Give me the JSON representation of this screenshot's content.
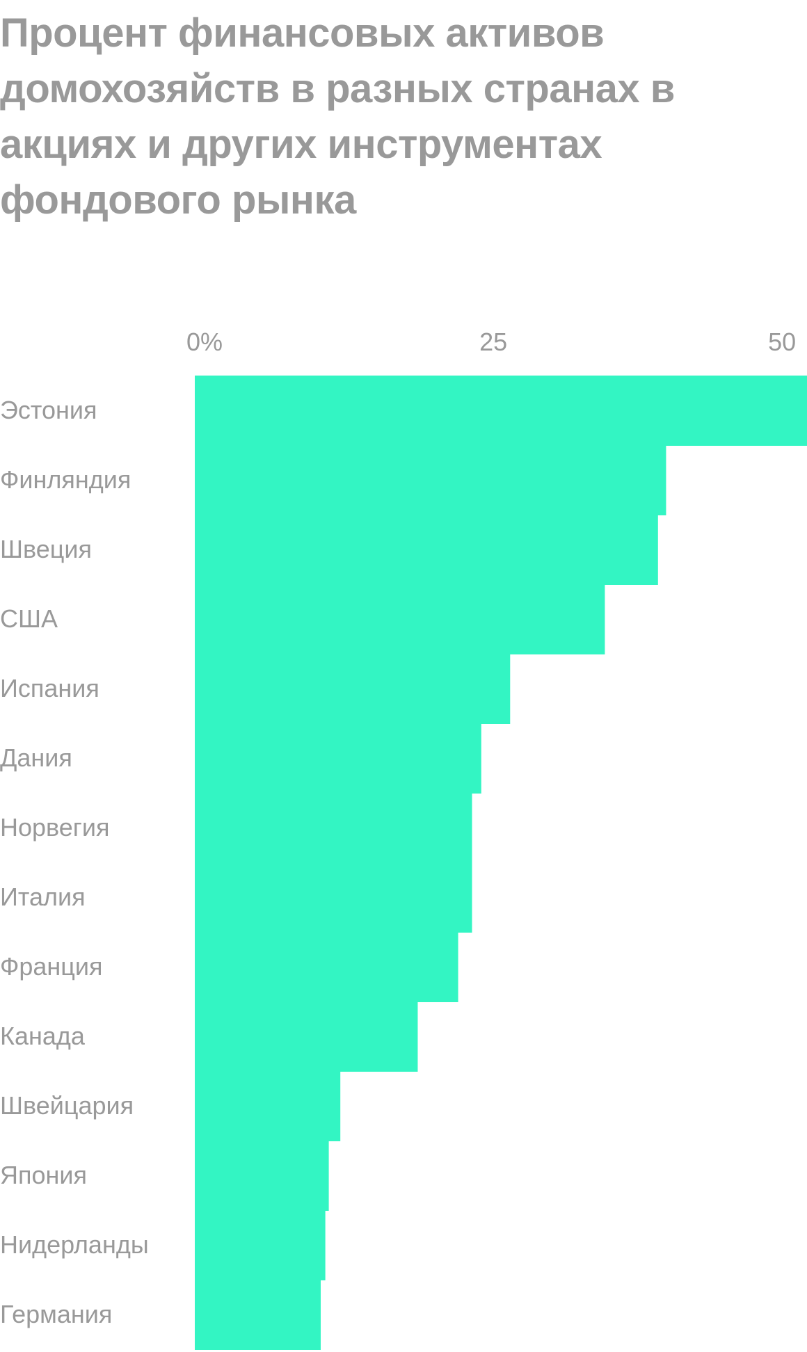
{
  "chart_data": {
    "type": "bar",
    "orientation": "horizontal",
    "title": "Процент финансовых активов домохозяйств в разных странах в акциях и других инструментах фондового рынка",
    "categories": [
      "Эстония",
      "Финляндия",
      "Швеция",
      "США",
      "Испания",
      "Дания",
      "Норвегия",
      "Италия",
      "Франция",
      "Канада",
      "Швейцария",
      "Япония",
      "Нидерланды",
      "Германия"
    ],
    "values": [
      55.3,
      40.8,
      40.1,
      35.5,
      27.3,
      24.8,
      24.0,
      24.0,
      22.8,
      19.3,
      12.6,
      11.6,
      11.3,
      10.9
    ],
    "xlim": [
      0,
      53
    ],
    "ticks": [
      0,
      25,
      50
    ],
    "tick_labels": [
      "0%",
      "25",
      "50"
    ],
    "bar_color": "#33f5c3",
    "text_color": "#999999",
    "grid": false,
    "legend": "none"
  }
}
